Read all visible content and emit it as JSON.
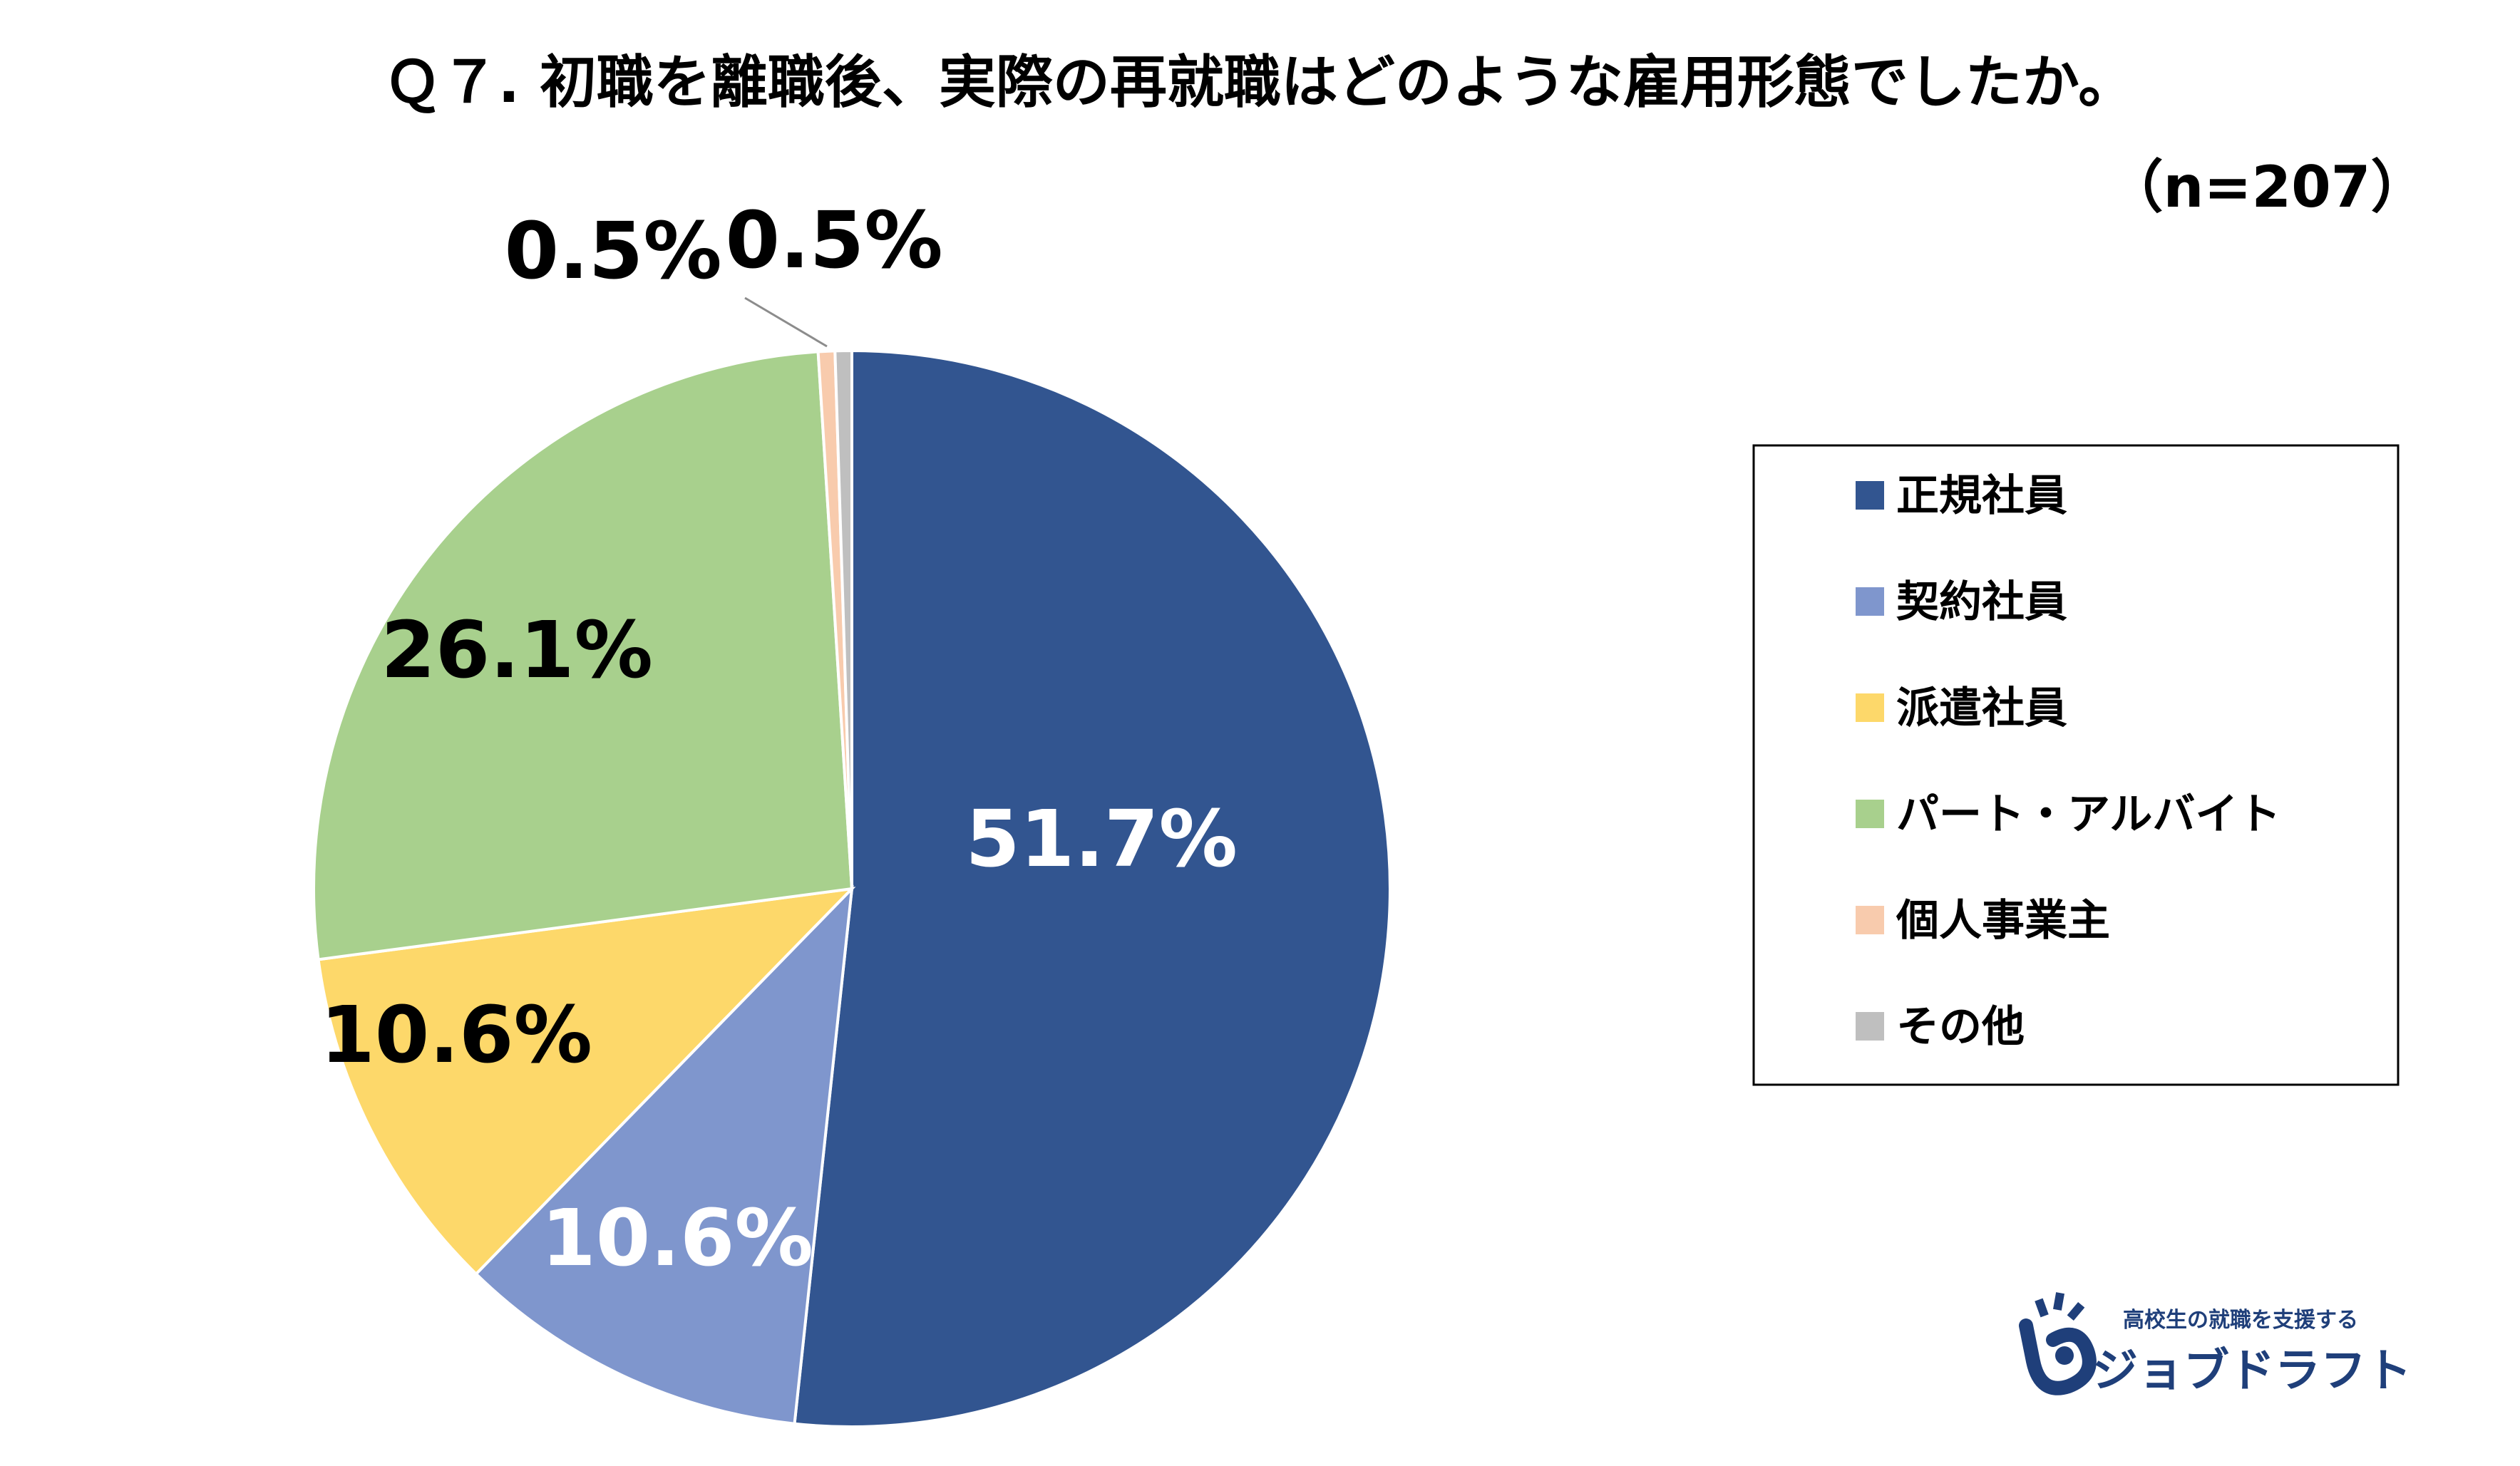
{
  "chart_data": {
    "type": "pie",
    "title": "Ｑ７. 初職を離職後、実際の再就職はどのような雇用形態でしたか。",
    "subtitle": "（n=207）",
    "legend_position": "right",
    "slices": [
      {
        "name": "正規社員",
        "value": 51.7,
        "label": "51.7%",
        "color": "#325590",
        "label_color": "#ffffff"
      },
      {
        "name": "契約社員",
        "value": 10.6,
        "label": "10.6%",
        "color": "#7f96cd",
        "label_color": "#ffffff"
      },
      {
        "name": "派遣社員",
        "value": 10.6,
        "label": "10.6%",
        "color": "#fdd86a",
        "label_color": "#000000"
      },
      {
        "name": "パート・アルバイト",
        "value": 26.1,
        "label": "26.1%",
        "color": "#a8d08d",
        "label_color": "#000000"
      },
      {
        "name": "個人事業主",
        "value": 0.5,
        "label": "0.5%",
        "color": "#f8cbad",
        "label_color": "#000000"
      },
      {
        "name": "その他",
        "value": 0.5,
        "label": "0.5%",
        "color": "#bfbfbf",
        "label_color": "#000000"
      }
    ]
  },
  "logo": {
    "tagline": "高校生の就職を支援する",
    "name": "ジョブドラフト",
    "color": "#1f3f7a"
  }
}
